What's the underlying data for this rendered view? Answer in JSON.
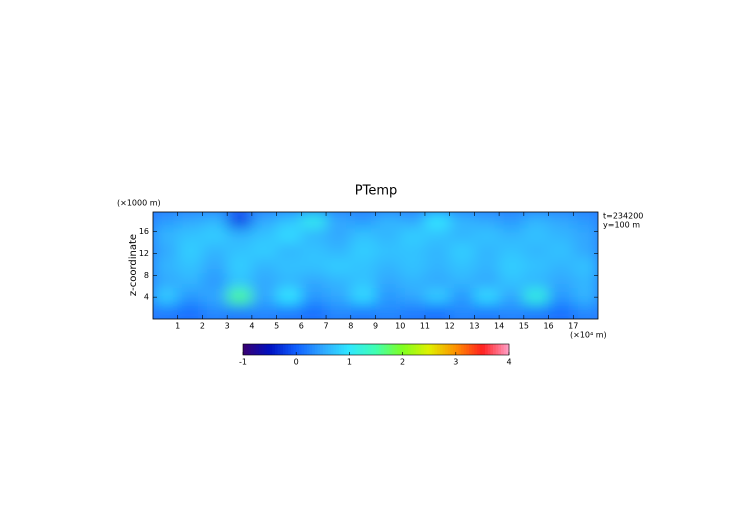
{
  "chart_data": {
    "type": "heatmap",
    "title": "PTemp",
    "ylabel": "z-coordinate",
    "ylabel_unit": "(×1000 m)",
    "xlabel": "(×10⁴ m)",
    "annotations": [
      "t=234200",
      "y=100 m"
    ],
    "x": [
      0.5,
      1.5,
      2.5,
      3.5,
      4.5,
      5.5,
      6.5,
      7.5,
      8.5,
      9.5,
      10.5,
      11.5,
      12.5,
      13.5,
      14.5,
      15.5,
      16.5,
      17.5
    ],
    "z": [
      1.4,
      4.2,
      7,
      9.8,
      12.6,
      15.4,
      18.2
    ],
    "values": [
      [
        0.2,
        0.1,
        0.3,
        0.2,
        0.3,
        0.2,
        0.1,
        0.3,
        0.2,
        0.3,
        0.2,
        0.1,
        0.3,
        0.2,
        0.3,
        0.2,
        0.1,
        0.3
      ],
      [
        0.8,
        0.4,
        0.5,
        1.6,
        0.5,
        1.0,
        0.4,
        0.5,
        0.9,
        0.4,
        0.5,
        0.8,
        0.4,
        0.9,
        0.5,
        1.2,
        0.4,
        0.6
      ],
      [
        0.5,
        0.6,
        0.4,
        0.7,
        0.5,
        0.6,
        0.5,
        0.6,
        0.7,
        0.5,
        0.6,
        0.5,
        0.6,
        0.5,
        0.7,
        0.6,
        0.5,
        0.6
      ],
      [
        0.6,
        0.7,
        0.5,
        0.8,
        0.6,
        0.7,
        0.7,
        0.8,
        0.7,
        0.6,
        0.7,
        0.6,
        0.7,
        0.6,
        0.8,
        0.7,
        0.6,
        0.7
      ],
      [
        0.5,
        0.8,
        0.6,
        0.7,
        0.8,
        0.6,
        0.7,
        0.6,
        0.8,
        0.7,
        0.7,
        0.6,
        0.8,
        0.6,
        0.7,
        0.6,
        0.7,
        0.5
      ],
      [
        0.6,
        0.7,
        0.8,
        0.6,
        0.7,
        0.9,
        0.6,
        0.5,
        0.7,
        0.6,
        0.8,
        0.7,
        0.6,
        0.7,
        0.6,
        0.7,
        0.6,
        0.5
      ],
      [
        0.4,
        0.5,
        0.6,
        -0.2,
        0.5,
        0.7,
        1.1,
        0.5,
        0.4,
        0.6,
        0.5,
        1.0,
        0.6,
        0.5,
        0.4,
        0.6,
        0.5,
        0.4
      ]
    ],
    "xlim": [
      0,
      18
    ],
    "ylim": [
      0,
      19.6
    ],
    "xticks": [
      1,
      2,
      3,
      4,
      5,
      6,
      7,
      8,
      9,
      10,
      11,
      12,
      13,
      14,
      15,
      16,
      17
    ],
    "yticks": [
      4,
      8,
      12,
      16
    ],
    "clim": [
      -1,
      4
    ],
    "cticks": [
      -1,
      0,
      1,
      2,
      3,
      4
    ],
    "colors": [
      "#3a0070",
      "#0010c0",
      "#1060ff",
      "#30a8ff",
      "#30e8ff",
      "#40ffb0",
      "#80ff20",
      "#e0f000",
      "#ff9000",
      "#ff2020",
      "#ffa0c8"
    ]
  }
}
